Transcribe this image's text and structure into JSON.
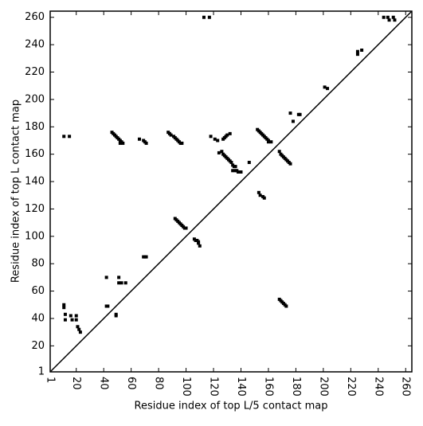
{
  "chart_data": {
    "type": "scatter",
    "x_label": "Residue index of top L/5 contact map",
    "y_label": "Residue index of top L contact map",
    "xlim": [
      1,
      264.5
    ],
    "ylim": [
      1,
      264.5
    ],
    "xticks": [
      1,
      20,
      40,
      60,
      80,
      100,
      120,
      140,
      160,
      180,
      200,
      220,
      240,
      260
    ],
    "yticks": [
      1,
      20,
      40,
      60,
      80,
      100,
      120,
      140,
      160,
      180,
      200,
      220,
      240,
      260
    ],
    "color": "#000000",
    "x": [
      11,
      15,
      11,
      11,
      12,
      12,
      16,
      17,
      20,
      20,
      21,
      22,
      23,
      42,
      42,
      43,
      49,
      49,
      51,
      51,
      53,
      56,
      46,
      47,
      48,
      49,
      50,
      51,
      52,
      53,
      54,
      52,
      66,
      69,
      70,
      71,
      69,
      70,
      71,
      87,
      88,
      89,
      91,
      92,
      93,
      94,
      95,
      96,
      97,
      92,
      93,
      94,
      95,
      96,
      97,
      98,
      99,
      100,
      106,
      107,
      108,
      109,
      109,
      110,
      113,
      117,
      118,
      121,
      123,
      124,
      126,
      127,
      128,
      129,
      130,
      131,
      132,
      133,
      134,
      135,
      136,
      127,
      128,
      129,
      130,
      132,
      134,
      136,
      137,
      138,
      139,
      140,
      146,
      152,
      153,
      154,
      155,
      156,
      157,
      158,
      159,
      160,
      160,
      162,
      153,
      154,
      156,
      157,
      168,
      169,
      170,
      171,
      172,
      173,
      174,
      175,
      176,
      168,
      169,
      170,
      171,
      172,
      173,
      176,
      178,
      182,
      183,
      201,
      203,
      225,
      225,
      228,
      244,
      247,
      248,
      251,
      252
    ],
    "values": [
      173,
      173,
      50,
      48,
      43,
      39,
      42,
      39,
      42,
      39,
      34,
      32,
      30,
      70,
      49,
      49,
      43,
      42,
      70,
      66,
      66,
      66,
      176,
      175,
      174,
      173,
      172,
      171,
      170,
      169,
      168,
      168,
      171,
      170,
      169,
      168,
      85,
      85,
      85,
      176,
      175,
      174,
      173,
      172,
      171,
      170,
      169,
      168,
      168,
      113,
      112,
      111,
      110,
      109,
      108,
      107,
      106,
      106,
      98,
      97,
      97,
      96,
      95,
      93,
      260,
      260,
      173,
      171,
      170,
      161,
      162,
      160,
      159,
      158,
      157,
      156,
      155,
      154,
      152,
      151,
      151,
      171,
      172,
      173,
      174,
      175,
      148,
      148,
      148,
      147,
      147,
      147,
      154,
      178,
      177,
      176,
      175,
      174,
      173,
      172,
      171,
      170,
      169,
      169,
      132,
      130,
      129,
      128,
      162,
      160,
      159,
      158,
      157,
      156,
      155,
      154,
      153,
      54,
      53,
      52,
      51,
      50,
      49,
      190,
      184,
      189,
      189,
      209,
      208,
      235,
      233,
      236,
      260,
      260,
      258,
      260,
      258
    ]
  }
}
